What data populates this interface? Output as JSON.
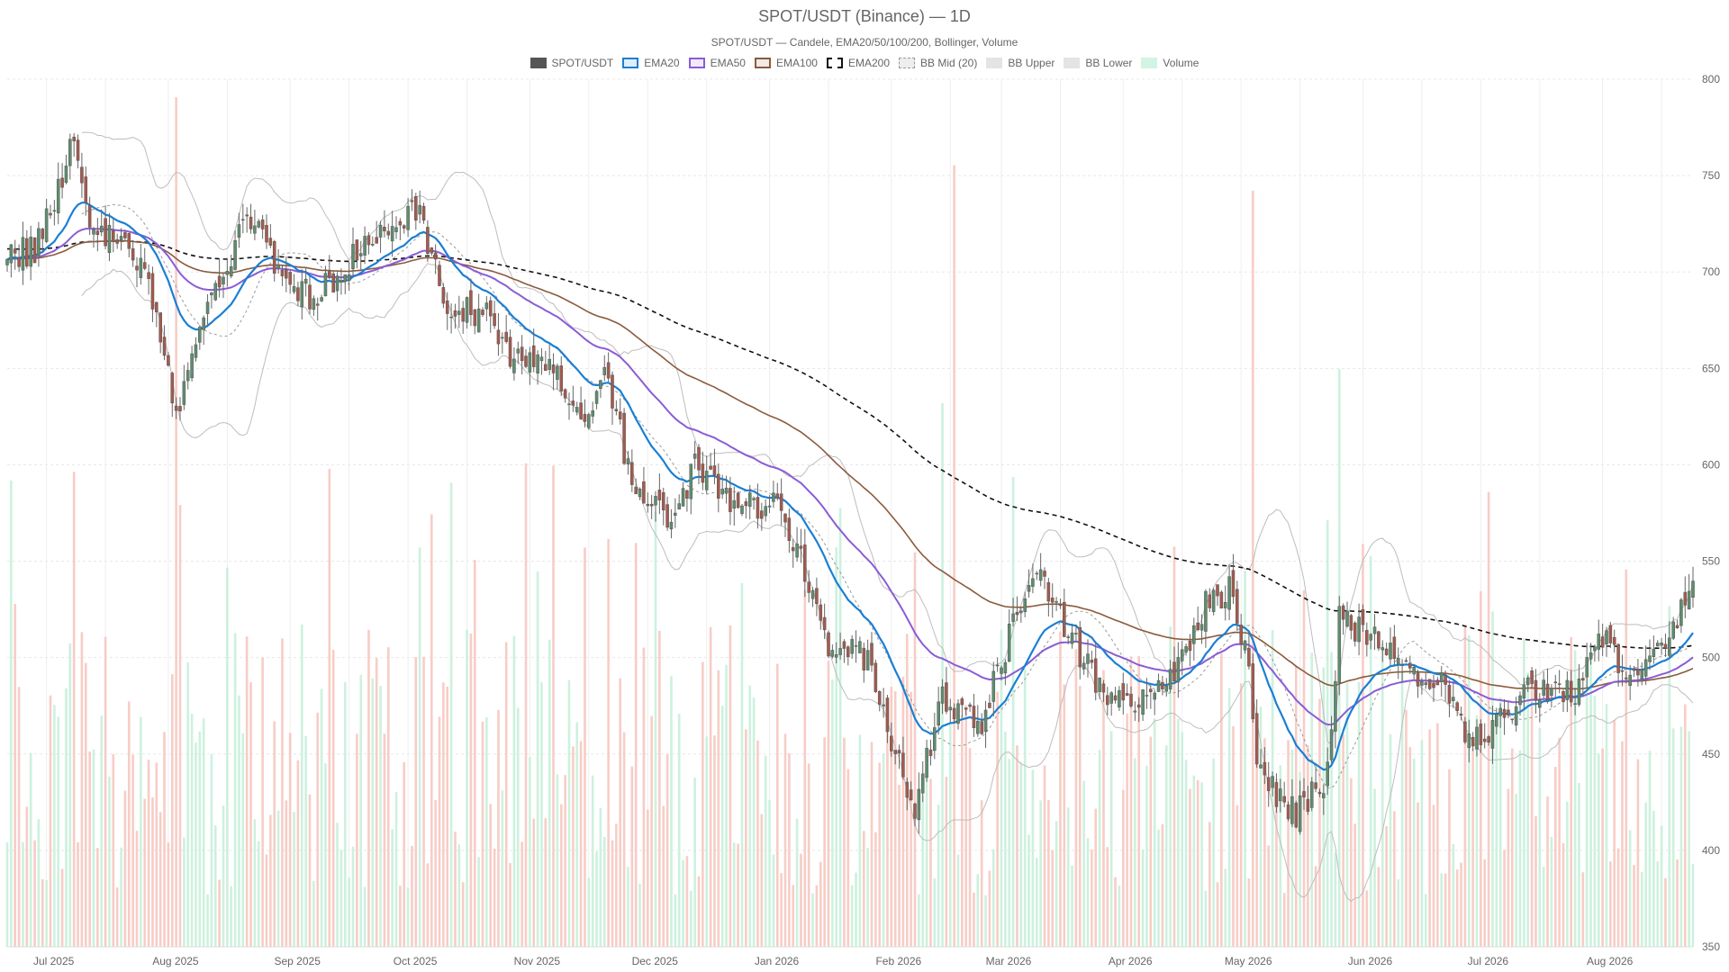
{
  "title": "SPOT/USDT (Binance) — 1D",
  "subtitle": "SPOT/USDT — Candele, EMA20/50/100/200, Bollinger, Volume",
  "legend": [
    {
      "label": "SPOT/USDT",
      "color": "#555555",
      "style": "solid-fill"
    },
    {
      "label": "EMA20",
      "color": "#1a7fd4",
      "style": "outline"
    },
    {
      "label": "EMA50",
      "color": "#8a5cd6",
      "style": "outline"
    },
    {
      "label": "EMA100",
      "color": "#8b5a3c",
      "style": "outline"
    },
    {
      "label": "EMA200",
      "color": "#111111",
      "style": "dashed"
    },
    {
      "label": "BB Mid (20)",
      "color": "#999999",
      "style": "dotted"
    },
    {
      "label": "BB Upper",
      "color": "#bbbbbb",
      "style": "light"
    },
    {
      "label": "BB Lower",
      "color": "#bbbbbb",
      "style": "light"
    },
    {
      "label": "Volume",
      "color": "#8fdcb4",
      "style": "light-green"
    }
  ],
  "colors": {
    "up": "#5e8d6e",
    "down": "#a45a4d",
    "vol_up": "#c8f0da",
    "vol_down": "#f6c8c0",
    "grid": "#e8e8e8"
  },
  "chart_data": {
    "type": "candlestick",
    "timeframe": "1D",
    "start_date": "2025-06-21",
    "end_date": "2026-08-24",
    "ylim": [
      350,
      800
    ],
    "y_ticks": [
      350,
      400,
      450,
      500,
      550,
      600,
      650,
      700,
      750,
      800
    ],
    "x_ticks": [
      "Jul 2025",
      "Aug 2025",
      "Sep 2025",
      "Oct 2025",
      "Nov 2025",
      "Dec 2025",
      "Jan 2026",
      "Feb 2026",
      "Mar 2026",
      "Apr 2026",
      "May 2026",
      "Jun 2026",
      "Jul 2026",
      "Aug 2026"
    ],
    "close_keypoints": [
      [
        "2025-06-21",
        708
      ],
      [
        "2025-06-28",
        712
      ],
      [
        "2025-07-03",
        735
      ],
      [
        "2025-07-08",
        775
      ],
      [
        "2025-07-13",
        720
      ],
      [
        "2025-07-22",
        718
      ],
      [
        "2025-07-29",
        680
      ],
      [
        "2025-08-03",
        625
      ],
      [
        "2025-08-08",
        665
      ],
      [
        "2025-08-15",
        700
      ],
      [
        "2025-08-22",
        730
      ],
      [
        "2025-08-29",
        700
      ],
      [
        "2025-09-07",
        685
      ],
      [
        "2025-09-16",
        705
      ],
      [
        "2025-09-26",
        725
      ],
      [
        "2025-10-04",
        730
      ],
      [
        "2025-10-11",
        680
      ],
      [
        "2025-10-20",
        680
      ],
      [
        "2025-10-28",
        655
      ],
      [
        "2025-11-06",
        655
      ],
      [
        "2025-11-14",
        620
      ],
      [
        "2025-11-20",
        650
      ],
      [
        "2025-11-27",
        590
      ],
      [
        "2025-12-07",
        570
      ],
      [
        "2025-12-13",
        600
      ],
      [
        "2025-12-22",
        580
      ],
      [
        "2026-01-02",
        580
      ],
      [
        "2026-01-10",
        545
      ],
      [
        "2026-01-16",
        505
      ],
      [
        "2026-01-26",
        500
      ],
      [
        "2026-02-02",
        450
      ],
      [
        "2026-02-07",
        420
      ],
      [
        "2026-02-14",
        480
      ],
      [
        "2026-02-24",
        465
      ],
      [
        "2026-03-05",
        525
      ],
      [
        "2026-03-09",
        545
      ],
      [
        "2026-03-19",
        510
      ],
      [
        "2026-03-29",
        475
      ],
      [
        "2026-04-06",
        480
      ],
      [
        "2026-04-15",
        495
      ],
      [
        "2026-04-22",
        530
      ],
      [
        "2026-04-28",
        535
      ],
      [
        "2026-05-03",
        500
      ],
      [
        "2026-05-05",
        440
      ],
      [
        "2026-05-15",
        420
      ],
      [
        "2026-05-23",
        440
      ],
      [
        "2026-05-26",
        520
      ],
      [
        "2026-06-04",
        510
      ],
      [
        "2026-06-12",
        495
      ],
      [
        "2026-06-20",
        490
      ],
      [
        "2026-06-29",
        455
      ],
      [
        "2026-07-06",
        470
      ],
      [
        "2026-07-15",
        485
      ],
      [
        "2026-07-24",
        480
      ],
      [
        "2026-08-01",
        510
      ],
      [
        "2026-08-09",
        490
      ],
      [
        "2026-08-17",
        505
      ],
      [
        "2026-08-24",
        540
      ]
    ],
    "volume_scale_max": 1000000,
    "volume_spikes": [
      [
        "2025-08-03",
        1000000
      ],
      [
        "2025-08-04",
        520000
      ],
      [
        "2025-10-04",
        470000
      ],
      [
        "2025-11-21",
        480000
      ],
      [
        "2026-01-10",
        420000
      ],
      [
        "2026-02-14",
        640000
      ],
      [
        "2026-02-17",
        920000
      ],
      [
        "2026-05-04",
        890000
      ],
      [
        "2026-05-26",
        680000
      ]
    ]
  }
}
